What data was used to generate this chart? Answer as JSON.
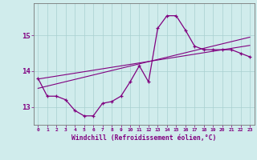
{
  "hours": [
    0,
    1,
    2,
    3,
    4,
    5,
    6,
    7,
    8,
    9,
    10,
    11,
    12,
    13,
    14,
    15,
    16,
    17,
    18,
    19,
    20,
    21,
    22,
    23
  ],
  "windchill": [
    13.8,
    13.3,
    13.3,
    13.2,
    12.9,
    12.75,
    12.75,
    13.1,
    13.15,
    13.3,
    13.7,
    14.15,
    13.7,
    15.2,
    15.55,
    15.55,
    15.15,
    14.7,
    14.6,
    14.6,
    14.6,
    14.6,
    14.5,
    14.4
  ],
  "line1_x": [
    0,
    23
  ],
  "line1_y": [
    13.78,
    14.72
  ],
  "line2_x": [
    0,
    23
  ],
  "line2_y": [
    13.52,
    14.95
  ],
  "line_color": "#800080",
  "curve_color": "#800080",
  "bg_color": "#d0ecec",
  "grid_color": "#a8d0d0",
  "axis_color": "#800080",
  "xlabel": "Windchill (Refroidissement éolien,°C)",
  "ylim": [
    12.5,
    15.9
  ],
  "xlim": [
    -0.5,
    23.5
  ],
  "xtick_labels": [
    "0",
    "1",
    "2",
    "3",
    "4",
    "5",
    "6",
    "7",
    "8",
    "9",
    "10",
    "11",
    "12",
    "13",
    "14",
    "15",
    "16",
    "17",
    "18",
    "19",
    "20",
    "21",
    "22",
    "23"
  ]
}
